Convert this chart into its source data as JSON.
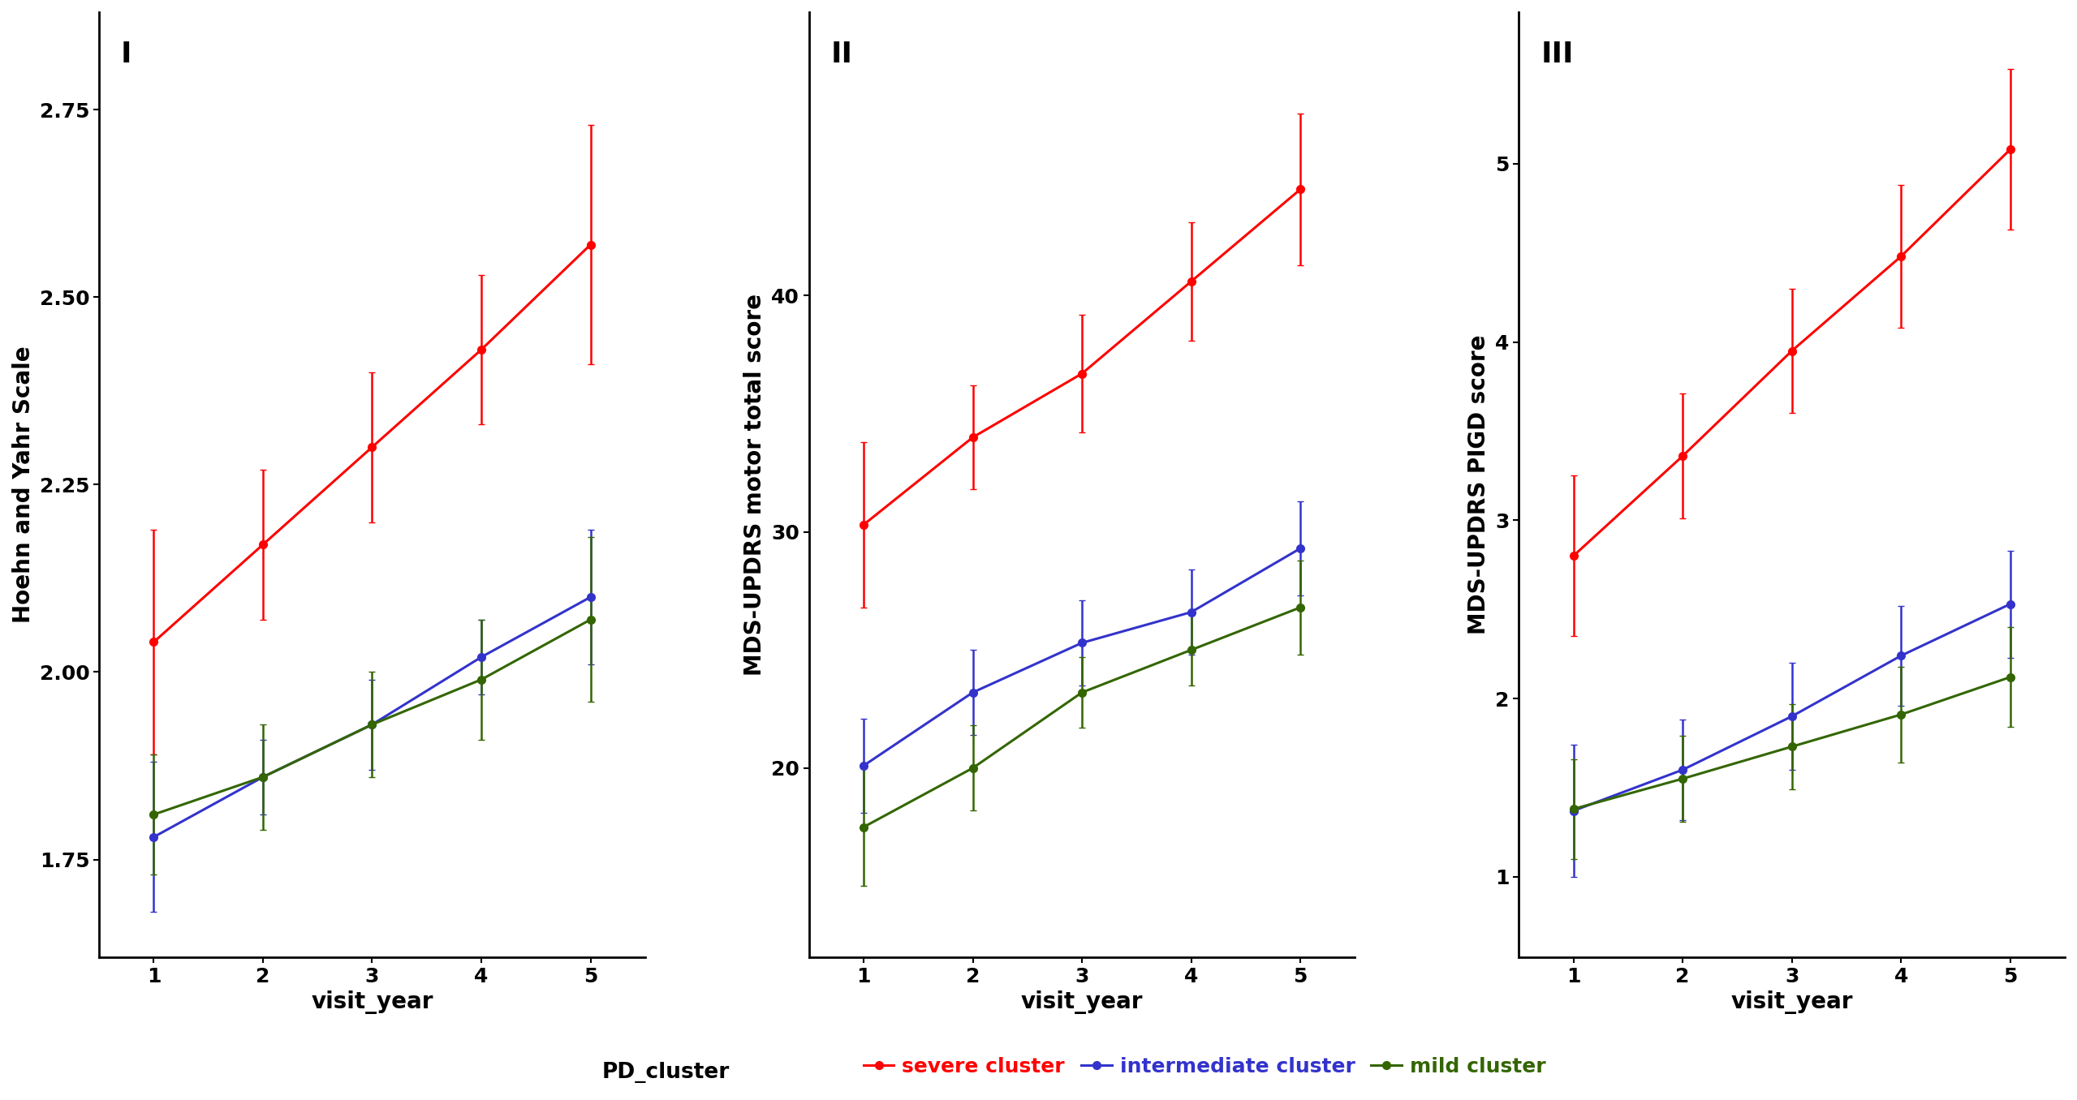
{
  "panel_labels": [
    "I",
    "II",
    "III"
  ],
  "x": [
    1,
    2,
    3,
    4,
    5
  ],
  "xlabel": "visit_year",
  "colors": {
    "severe": "#FF0000",
    "intermediate": "#3333CC",
    "mild": "#336600"
  },
  "panel1": {
    "ylabel": "Hoehn and Yahr Scale",
    "ylim": [
      1.62,
      2.88
    ],
    "yticks": [
      1.75,
      2.0,
      2.25,
      2.5,
      2.75
    ],
    "ytick_labels": [
      "1.75",
      "2.00",
      "2.25",
      "2.50",
      "2.75"
    ],
    "severe_y": [
      2.04,
      2.17,
      2.3,
      2.43,
      2.57
    ],
    "severe_err": [
      0.15,
      0.1,
      0.1,
      0.1,
      0.16
    ],
    "intermediate_y": [
      1.78,
      1.86,
      1.93,
      2.02,
      2.1
    ],
    "intermediate_err": [
      0.1,
      0.05,
      0.06,
      0.05,
      0.09
    ],
    "mild_y": [
      1.81,
      1.86,
      1.93,
      1.99,
      2.07
    ],
    "mild_err": [
      0.08,
      0.07,
      0.07,
      0.08,
      0.11
    ]
  },
  "panel2": {
    "ylabel": "MDS-UPDRS motor total score",
    "ylim": [
      12,
      52
    ],
    "yticks": [
      20,
      30,
      40
    ],
    "ytick_labels": [
      "20",
      "30",
      "40"
    ],
    "severe_y": [
      30.3,
      34.0,
      36.7,
      40.6,
      44.5
    ],
    "severe_err": [
      3.5,
      2.2,
      2.5,
      2.5,
      3.2
    ],
    "intermediate_y": [
      20.1,
      23.2,
      25.3,
      26.6,
      29.3
    ],
    "intermediate_err": [
      2.0,
      1.8,
      1.8,
      1.8,
      2.0
    ],
    "mild_y": [
      17.5,
      20.0,
      23.2,
      25.0,
      26.8
    ],
    "mild_err": [
      2.5,
      1.8,
      1.5,
      1.5,
      2.0
    ]
  },
  "panel3": {
    "ylabel": "MDS-UPDRS PIGD score",
    "ylim": [
      0.55,
      5.85
    ],
    "yticks": [
      1,
      2,
      3,
      4,
      5
    ],
    "ytick_labels": [
      "1",
      "2",
      "3",
      "4",
      "5"
    ],
    "severe_y": [
      2.8,
      3.36,
      3.95,
      4.48,
      5.08
    ],
    "severe_err": [
      0.45,
      0.35,
      0.35,
      0.4,
      0.45
    ],
    "intermediate_y": [
      1.37,
      1.6,
      1.9,
      2.24,
      2.53
    ],
    "intermediate_err": [
      0.37,
      0.28,
      0.3,
      0.28,
      0.3
    ],
    "mild_y": [
      1.38,
      1.55,
      1.73,
      1.91,
      2.12
    ],
    "mild_err": [
      0.28,
      0.24,
      0.24,
      0.27,
      0.28
    ]
  },
  "legend_label_severe": "severe cluster",
  "legend_label_intermediate": "intermediate cluster",
  "legend_label_mild": "mild cluster",
  "legend_prefix": "PD_cluster",
  "marker_size": 7,
  "linewidth": 2.2,
  "capsize": 3,
  "elinewidth": 1.8,
  "background_color": "#FFFFFF",
  "tick_fontsize": 18,
  "label_fontsize": 20,
  "legend_fontsize": 18,
  "panel_label_fontsize": 26
}
